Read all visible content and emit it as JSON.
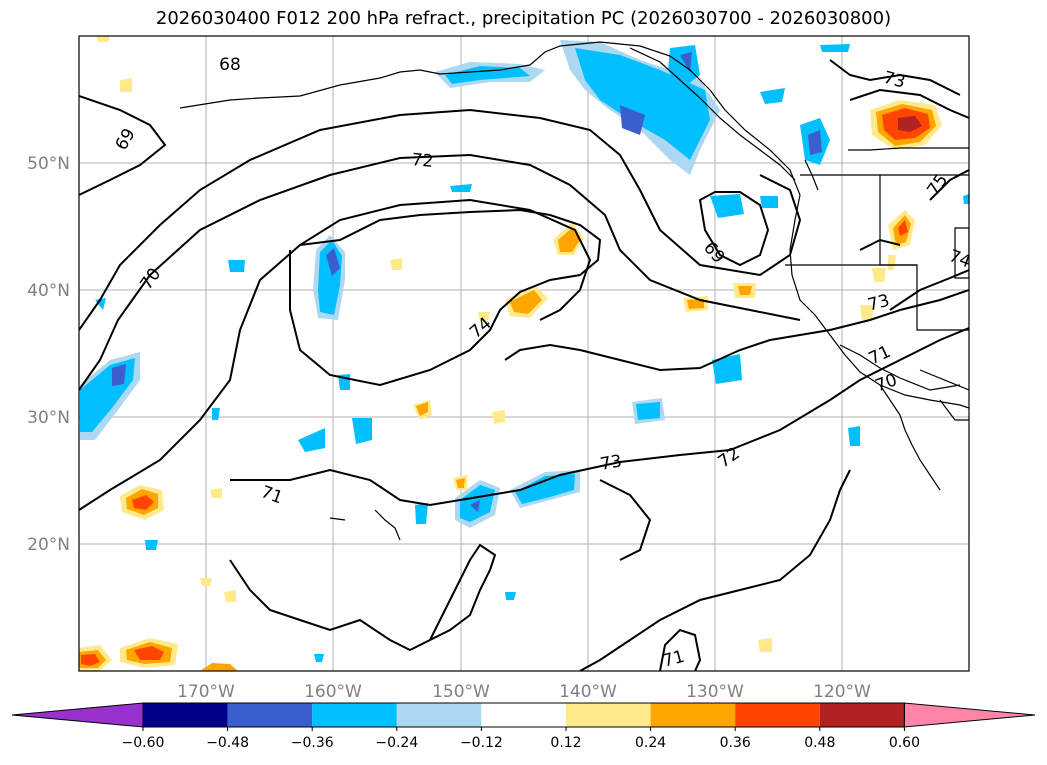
{
  "title": "2026030400 F012 200 hPa refract., precipitation PC (2026030700 - 2026030800)",
  "lat_labels": [
    "50°N",
    "40°N",
    "30°N",
    "20°N"
  ],
  "lon_labels": [
    "170°W",
    "160°W",
    "150°W",
    "140°W",
    "130°W",
    "120°W"
  ],
  "contour_labels": [
    "68",
    "69",
    "70",
    "71",
    "72",
    "73",
    "74",
    "69",
    "72",
    "73",
    "74",
    "73",
    "71",
    "70",
    "73",
    "71",
    "75",
    "74"
  ],
  "colorbar": {
    "tick_labels": [
      "−0.60",
      "−0.48",
      "−0.36",
      "−0.24",
      "−0.12",
      "0.12",
      "0.24",
      "0.36",
      "0.48",
      "0.60"
    ],
    "colors": [
      "#9932cc",
      "#00008b",
      "#3a5fcd",
      "#00bfff",
      "#add8f2",
      "#ffffff",
      "#ffe98a",
      "#ffa500",
      "#ff4500",
      "#b22222",
      "#ff85a8"
    ]
  },
  "palette": {
    "neg_light": "#add8f2",
    "neg_mid": "#00bfff",
    "neg_strong": "#3a5fcd",
    "pos_light": "#ffe98a",
    "pos_mid": "#ffa500",
    "pos_strong": "#ff4500",
    "pos_max": "#b22222"
  }
}
